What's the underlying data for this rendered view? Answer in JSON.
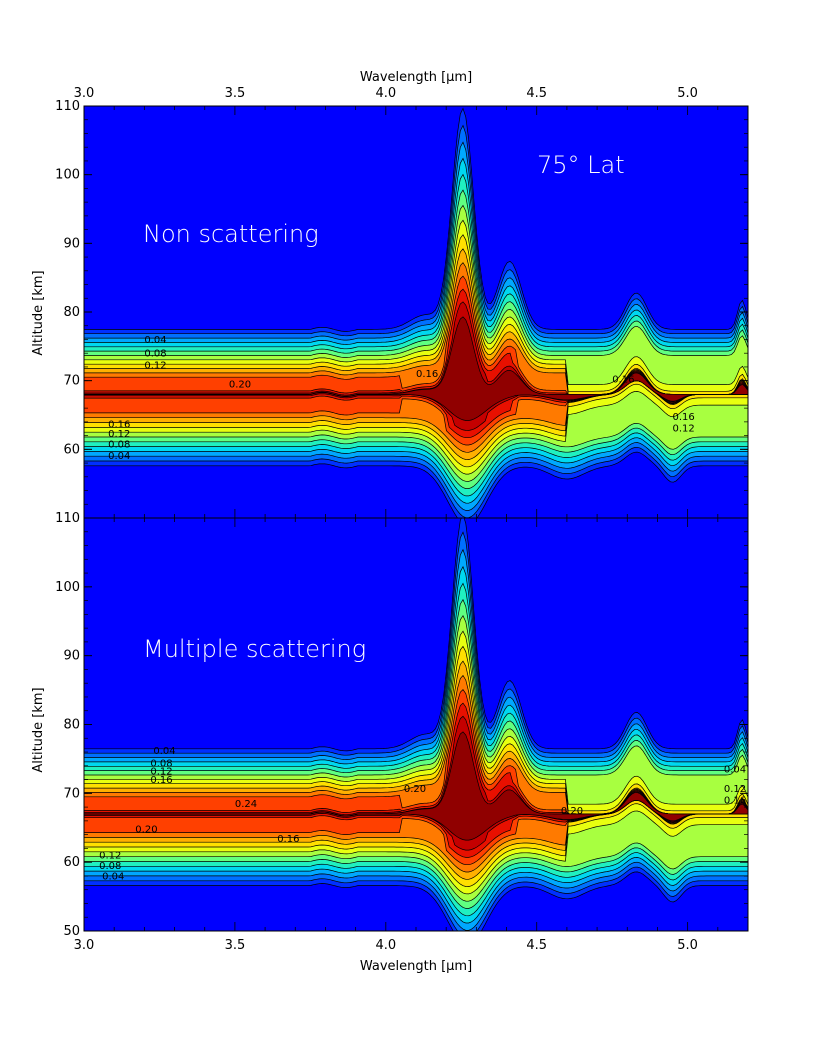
{
  "chart_data": {
    "type": "heatmap",
    "x_axis": {
      "label": "Wavelength [μm]",
      "range": [
        3.0,
        5.2
      ],
      "ticks": [
        "3.0",
        "3.5",
        "4.0",
        "4.5",
        "5.0"
      ]
    },
    "annotation": "75° Lat",
    "colors": {
      "background": "#0000ff",
      "scale": [
        "#0000ff",
        "#0030ff",
        "#0070ff",
        "#00a8ff",
        "#00d8f0",
        "#20f0c0",
        "#60ff80",
        "#a8ff40",
        "#e8ff10",
        "#ffe000",
        "#ffb000",
        "#ff7a00",
        "#ff4000",
        "#e81000",
        "#c40000",
        "#900000"
      ]
    },
    "panels": [
      {
        "name": "Non scattering",
        "ylabel": "Altitude [km]",
        "ylim": [
          50,
          110
        ],
        "y_ticks": [
          "60",
          "70",
          "80",
          "90",
          "100",
          "110"
        ],
        "contour_levels": [
          "0.04",
          "0.08",
          "0.12",
          "0.16",
          "0.20"
        ],
        "layer_peak_altitude_km": 68,
        "max_value_label": "0.20",
        "peak_wavelength_um": 4.26,
        "peak_top_altitude_km": 102,
        "contour_labels": [
          {
            "text": "0.04",
            "x": 3.2,
            "y": 75.5
          },
          {
            "text": "0.08",
            "x": 3.2,
            "y": 73.5
          },
          {
            "text": "0.12",
            "x": 3.2,
            "y": 71.8
          },
          {
            "text": "0.20",
            "x": 3.48,
            "y": 69.0
          },
          {
            "text": "0.16",
            "x": 3.08,
            "y": 63.2
          },
          {
            "text": "0.12",
            "x": 3.08,
            "y": 61.8
          },
          {
            "text": "0.08",
            "x": 3.08,
            "y": 60.3
          },
          {
            "text": "0.04",
            "x": 3.08,
            "y": 58.6
          },
          {
            "text": "0.16",
            "x": 4.1,
            "y": 70.5
          },
          {
            "text": "0.16",
            "x": 4.75,
            "y": 69.7
          },
          {
            "text": "0.16",
            "x": 4.95,
            "y": 64.3
          },
          {
            "text": "0.12",
            "x": 4.95,
            "y": 62.6
          }
        ]
      },
      {
        "name": "Multiple scattering",
        "ylabel": "Altitude [km]",
        "ylim": [
          50,
          110
        ],
        "y_ticks": [
          "50",
          "60",
          "70",
          "80",
          "90",
          "100",
          "110"
        ],
        "contour_levels": [
          "0.04",
          "0.08",
          "0.12",
          "0.16",
          "0.20",
          "0.24"
        ],
        "layer_peak_altitude_km": 67,
        "max_value_label": "0.24",
        "peak_wavelength_um": 4.26,
        "peak_top_altitude_km": 103,
        "contour_labels": [
          {
            "text": "0.04",
            "x": 3.23,
            "y": 75.7
          },
          {
            "text": "0.08",
            "x": 3.22,
            "y": 73.9
          },
          {
            "text": "0.12",
            "x": 3.22,
            "y": 72.7
          },
          {
            "text": "0.16",
            "x": 3.22,
            "y": 71.5
          },
          {
            "text": "0.24",
            "x": 3.5,
            "y": 68.0
          },
          {
            "text": "0.20",
            "x": 3.17,
            "y": 64.3
          },
          {
            "text": "0.16",
            "x": 3.64,
            "y": 62.9
          },
          {
            "text": "0.12",
            "x": 3.05,
            "y": 60.5
          },
          {
            "text": "0.08",
            "x": 3.05,
            "y": 59.0
          },
          {
            "text": "0.04",
            "x": 3.06,
            "y": 57.5
          },
          {
            "text": "0.20",
            "x": 4.06,
            "y": 70.2
          },
          {
            "text": "0.20",
            "x": 4.58,
            "y": 67.0
          },
          {
            "text": "0.04",
            "x": 5.12,
            "y": 73.0
          },
          {
            "text": "0.12",
            "x": 5.12,
            "y": 70.2
          },
          {
            "text": "0.16",
            "x": 5.12,
            "y": 68.5
          }
        ]
      }
    ]
  }
}
